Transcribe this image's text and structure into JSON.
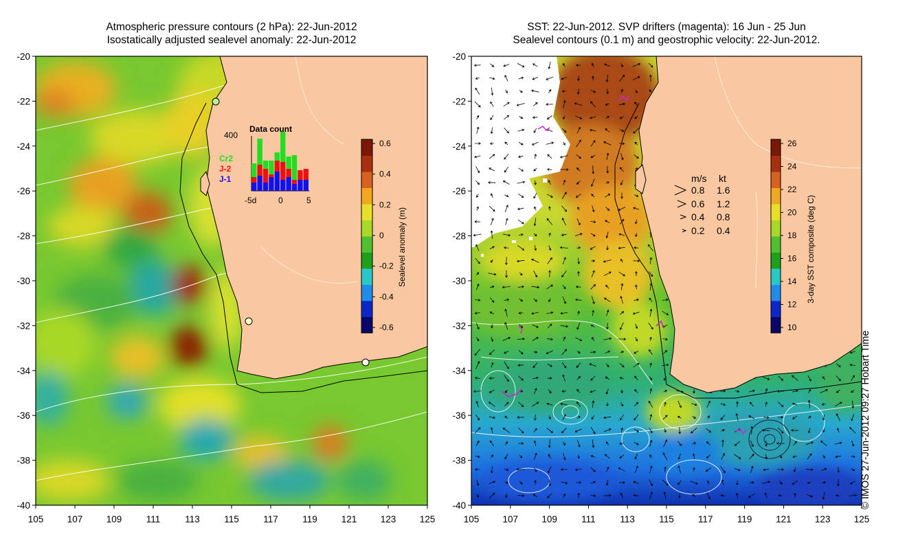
{
  "left_panel": {
    "title_line1": "Atmospheric pressure contours (2 hPa): 22-Jun-2012",
    "title_line2": "Isostatically adjusted sealevel anomaly: 22-Jun-2012",
    "colorbar": {
      "label": "Sealevel anomaly (m)",
      "ticks": [
        "0.6",
        "0.4",
        "0.2",
        "0",
        "-0.2",
        "-0.4",
        "-0.6"
      ],
      "colors": [
        "#08086a",
        "#0a28c8",
        "#1e8ce8",
        "#28c8c8",
        "#1ea01e",
        "#50c030",
        "#a8d828",
        "#e8e028",
        "#f0a820",
        "#d86020",
        "#a83010",
        "#7a1808"
      ]
    },
    "inset": {
      "title": "Data count",
      "ymax_label": "400",
      "x_labels": [
        "-5d",
        "0",
        "5"
      ],
      "legend": [
        "Cr2",
        "J-2",
        "J-1"
      ],
      "legend_colors": [
        "#22dd22",
        "#ee1111",
        "#1111ee"
      ],
      "j1_counts": [
        60,
        110,
        60,
        100,
        140,
        80,
        100,
        50,
        80,
        80
      ],
      "j2_counts": [
        40,
        80,
        100,
        20,
        80,
        130,
        60,
        30,
        70,
        80
      ],
      "cr2_counts": [
        100,
        190,
        60,
        100,
        60,
        220,
        90,
        180,
        0,
        0
      ]
    }
  },
  "right_panel": {
    "title_line1": "SST: 22-Jun-2012. SVP drifters (magenta): 16 Jun - 25 Jun",
    "title_line2": "Sealevel contours (0.1 m) and geostrophic velocity: 22-Jun-2012.",
    "colorbar": {
      "label": "3-day SST composite (deg C)",
      "ticks": [
        "26",
        "24",
        "22",
        "20",
        "18",
        "16",
        "14",
        "12",
        "10"
      ],
      "colors": [
        "#08086a",
        "#0a28c8",
        "#1e8ce8",
        "#28c8c8",
        "#1ea01e",
        "#50c030",
        "#a8d828",
        "#e8e028",
        "#f0a820",
        "#d86020",
        "#a83010",
        "#7a1808"
      ]
    },
    "speed_key": {
      "header_ms": "m/s",
      "header_kt": "kt",
      "rows": [
        {
          "ms": "0.8",
          "kt": "1.6"
        },
        {
          "ms": "0.6",
          "kt": "1.2"
        },
        {
          "ms": "0.4",
          "kt": "0.8"
        },
        {
          "ms": "0.2",
          "kt": "0.4"
        }
      ]
    }
  },
  "axes": {
    "lat_labels": [
      "-20",
      "-22",
      "-24",
      "-26",
      "-28",
      "-30",
      "-32",
      "-34",
      "-36",
      "-38",
      "-40"
    ],
    "lon_labels": [
      "105",
      "107",
      "109",
      "111",
      "113",
      "115",
      "117",
      "119",
      "121",
      "123",
      "125"
    ]
  },
  "land_color": "#fac8a0",
  "credit": "© IMOS 27-Jun-2012 09:27 Hobart Time"
}
